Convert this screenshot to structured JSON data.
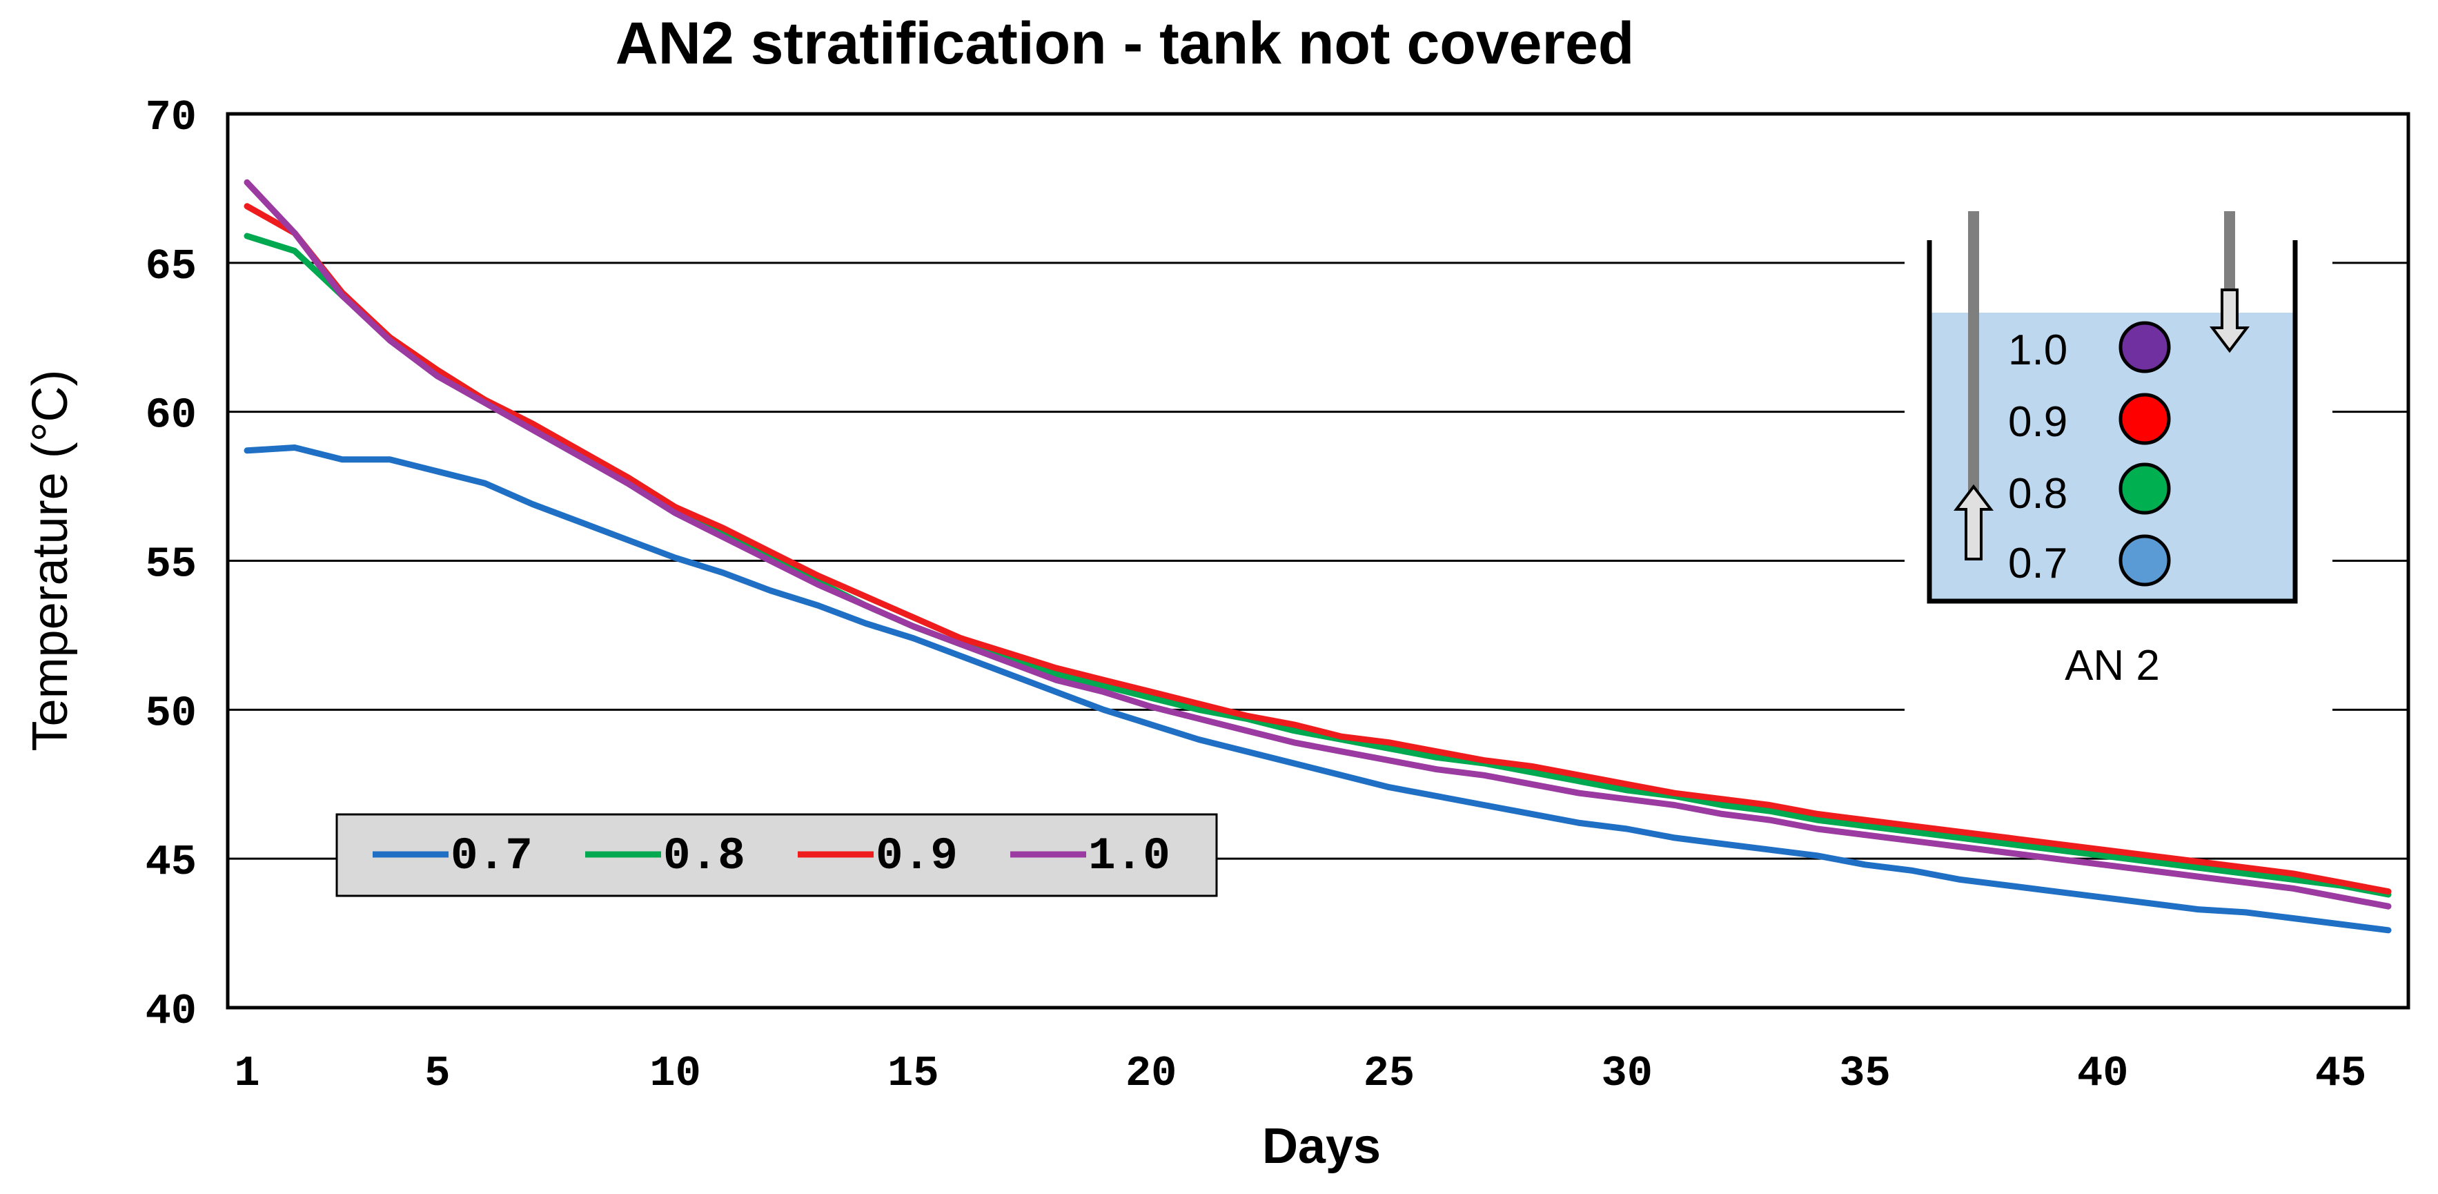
{
  "chart_data": {
    "type": "line",
    "title": "AN2 stratification - tank not covered",
    "xlabel": "Days",
    "ylabel": "Temperature (°C)",
    "ylim": [
      40,
      70
    ],
    "xlim": [
      1,
      46
    ],
    "x_ticks": [
      "1",
      "5",
      "10",
      "15",
      "20",
      "25",
      "30",
      "35",
      "40",
      "45"
    ],
    "y_ticks": [
      "40",
      "45",
      "50",
      "55",
      "60",
      "65",
      "70"
    ],
    "grid": "horizontal",
    "legend_position": "bottom-left",
    "x": [
      1,
      2,
      3,
      4,
      5,
      6,
      7,
      8,
      9,
      10,
      11,
      12,
      13,
      14,
      15,
      16,
      17,
      18,
      19,
      20,
      21,
      22,
      23,
      24,
      25,
      26,
      27,
      28,
      29,
      30,
      31,
      32,
      33,
      34,
      35,
      36,
      37,
      38,
      39,
      40,
      41,
      42,
      43,
      44,
      45,
      46
    ],
    "series": [
      {
        "name": "0.7",
        "color": "#1f6fc5",
        "values": [
          58.7,
          58.8,
          58.4,
          58.4,
          58.0,
          57.6,
          56.9,
          56.3,
          55.7,
          55.1,
          54.6,
          54.0,
          53.5,
          52.9,
          52.4,
          51.8,
          51.2,
          50.6,
          50.0,
          49.5,
          49.0,
          48.6,
          48.2,
          47.8,
          47.4,
          47.1,
          46.8,
          46.5,
          46.2,
          46.0,
          45.7,
          45.5,
          45.3,
          45.1,
          44.8,
          44.6,
          44.3,
          44.1,
          43.9,
          43.7,
          43.5,
          43.3,
          43.2,
          43.0,
          42.8,
          42.6
        ]
      },
      {
        "name": "0.8",
        "color": "#00a84f",
        "values": [
          65.9,
          65.4,
          63.9,
          62.5,
          61.4,
          60.4,
          59.5,
          58.6,
          57.8,
          56.8,
          56.0,
          55.1,
          54.3,
          53.5,
          52.8,
          52.2,
          51.7,
          51.2,
          50.8,
          50.4,
          50.0,
          49.7,
          49.3,
          49.0,
          48.7,
          48.4,
          48.2,
          47.9,
          47.6,
          47.3,
          47.1,
          46.8,
          46.6,
          46.3,
          46.1,
          45.9,
          45.7,
          45.5,
          45.3,
          45.1,
          44.9,
          44.7,
          44.5,
          44.3,
          44.1,
          43.8
        ]
      },
      {
        "name": "0.9",
        "color": "#ee1c1c",
        "values": [
          66.9,
          66.0,
          64.0,
          62.5,
          61.4,
          60.4,
          59.6,
          58.7,
          57.8,
          56.8,
          56.1,
          55.3,
          54.5,
          53.8,
          53.1,
          52.4,
          51.9,
          51.4,
          51.0,
          50.6,
          50.2,
          49.8,
          49.5,
          49.1,
          48.9,
          48.6,
          48.3,
          48.1,
          47.8,
          47.5,
          47.2,
          47.0,
          46.8,
          46.5,
          46.3,
          46.1,
          45.9,
          45.7,
          45.5,
          45.3,
          45.1,
          44.9,
          44.7,
          44.5,
          44.2,
          43.9
        ]
      },
      {
        "name": "1.0",
        "color": "#9b3aa0",
        "values": [
          67.7,
          66.0,
          63.9,
          62.4,
          61.2,
          60.3,
          59.4,
          58.5,
          57.6,
          56.6,
          55.8,
          55.0,
          54.2,
          53.5,
          52.8,
          52.2,
          51.6,
          51.0,
          50.6,
          50.1,
          49.7,
          49.3,
          48.9,
          48.6,
          48.3,
          48.0,
          47.8,
          47.5,
          47.2,
          47.0,
          46.8,
          46.5,
          46.3,
          46.0,
          45.8,
          45.6,
          45.4,
          45.2,
          45.0,
          44.8,
          44.6,
          44.4,
          44.2,
          44.0,
          43.7,
          43.4
        ]
      }
    ],
    "inset": {
      "tank_label": "AN 2",
      "water_color": "#bdd7ee",
      "sensors": [
        {
          "label": "1.0",
          "color": "#7030a0"
        },
        {
          "label": "0.9",
          "color": "#ff0000"
        },
        {
          "label": "0.8",
          "color": "#00b050"
        },
        {
          "label": "0.7",
          "color": "#5b9bd5"
        }
      ]
    }
  }
}
